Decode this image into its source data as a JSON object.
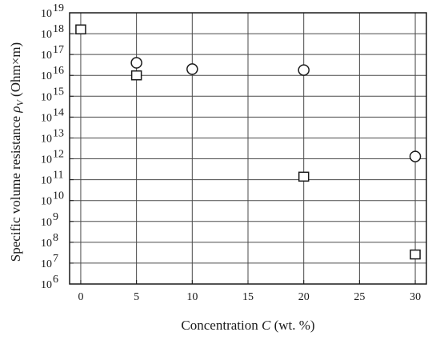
{
  "chart_data": {
    "type": "scatter",
    "title": "",
    "xlabel": {
      "pre": "Concentration ",
      "var": "C",
      "post": " (wt. %)"
    },
    "ylabel": {
      "pre": "Specific volume resistance ",
      "var": "ρ",
      "sub": "V",
      "post": " (Ohm×m)"
    },
    "xlim": [
      -1,
      31
    ],
    "ylim_exponent": [
      6,
      19
    ],
    "y_scale": "log",
    "x_ticks": [
      0,
      5,
      10,
      15,
      20,
      25,
      30
    ],
    "y_tick_exponents": [
      6,
      7,
      8,
      9,
      10,
      11,
      12,
      13,
      14,
      15,
      16,
      17,
      18,
      19
    ],
    "y_tick_base": "10",
    "grid": true,
    "series": [
      {
        "marker": "circle",
        "points": [
          {
            "x": 5,
            "y": 4e+16
          },
          {
            "x": 10,
            "y": 2e+16
          },
          {
            "x": 20,
            "y": 1.8e+16
          },
          {
            "x": 30,
            "y": 1300000000000.0
          }
        ]
      },
      {
        "marker": "square",
        "points": [
          {
            "x": 0,
            "y": 1.6e+18
          },
          {
            "x": 5,
            "y": 1e+16
          },
          {
            "x": 20,
            "y": 140000000000.0
          },
          {
            "x": 30,
            "y": 26000000.0
          }
        ]
      }
    ]
  }
}
